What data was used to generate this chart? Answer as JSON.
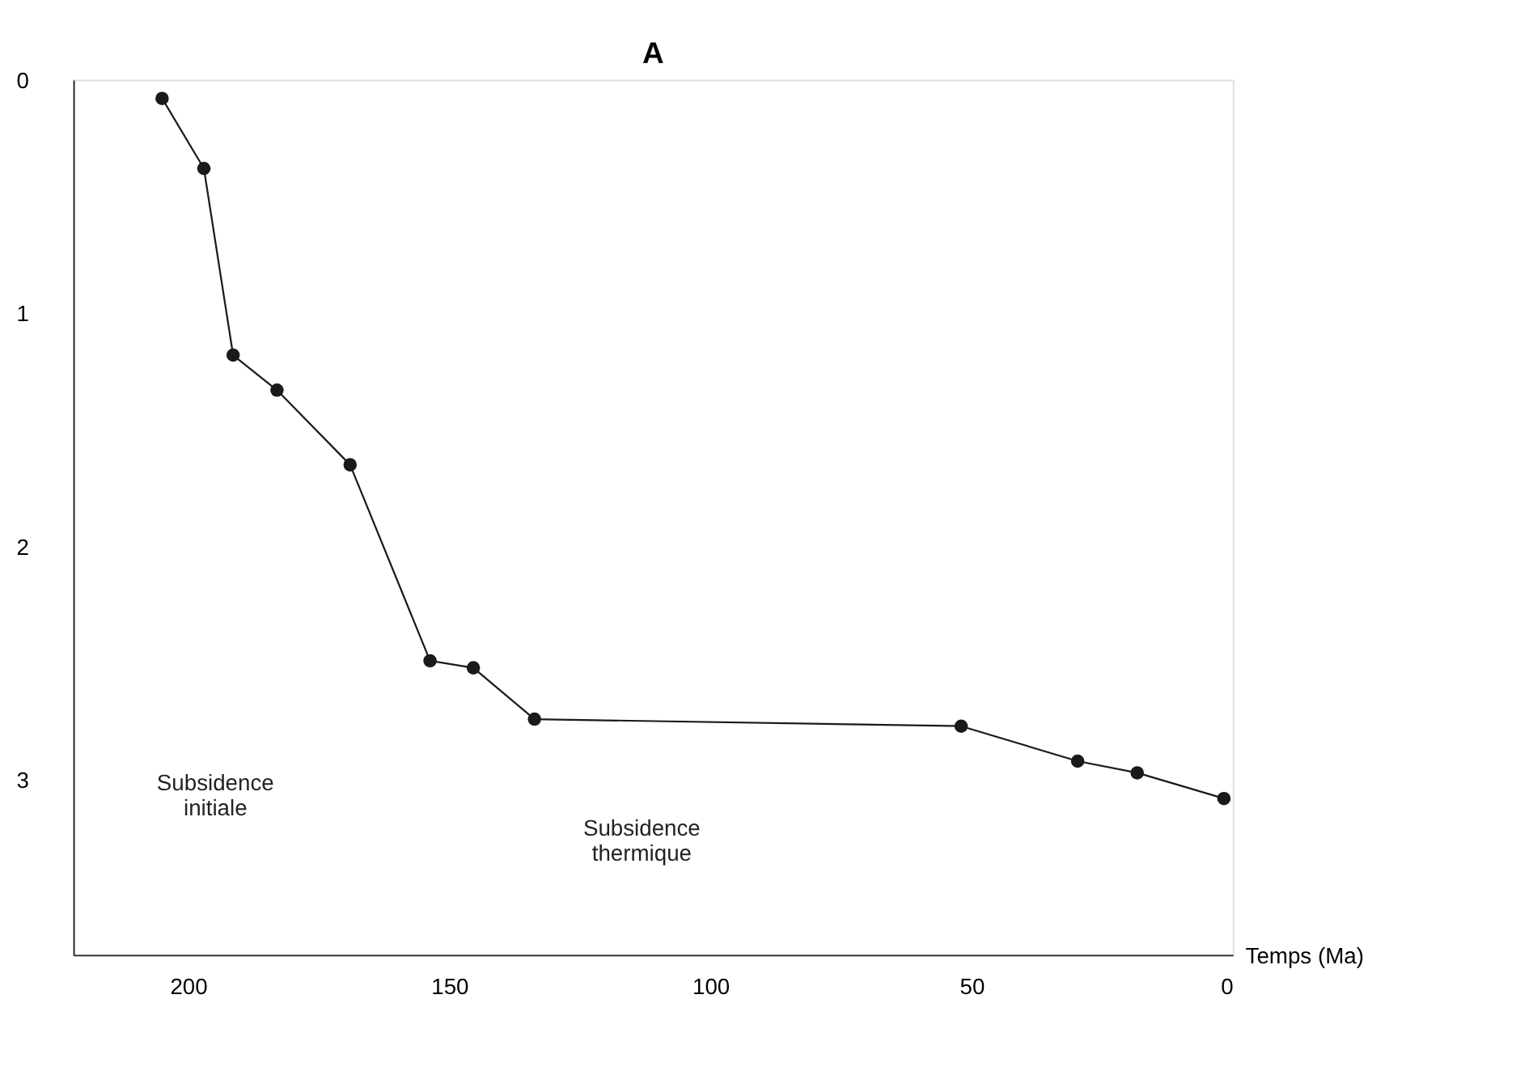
{
  "chart_data": {
    "type": "line",
    "title": "A",
    "xlabel": "Temps (Ma)",
    "x": [
      205,
      197,
      191.4,
      183,
      169,
      153.7,
      145.4,
      133.7,
      52,
      29.7,
      18.3,
      1.7
    ],
    "series": [
      {
        "color": "#1a1a1a",
        "values": [
          0.08,
          0.38,
          1.18,
          1.33,
          1.65,
          2.49,
          2.52,
          2.74,
          2.77,
          2.92,
          2.97,
          3.08
        ]
      }
    ],
    "xlim": [
      222,
      0
    ],
    "xticks": [
      200,
      150,
      100,
      50,
      0
    ],
    "ylim": [
      3.75,
      0
    ],
    "yticks": [
      0,
      1,
      2,
      3
    ],
    "annotations": [
      "Subsidence\ninitiale",
      "Subsidence\nthermique"
    ],
    "grid": false,
    "marker": "circle",
    "line_style": "solid"
  }
}
